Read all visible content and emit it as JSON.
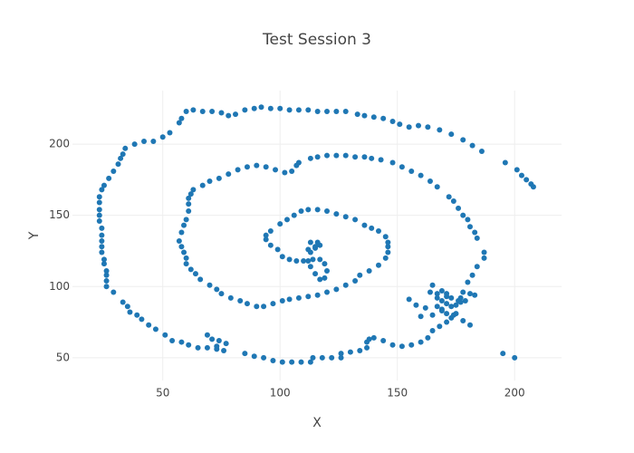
{
  "chart_data": {
    "type": "scatter",
    "title": "Test Session 3",
    "x_label": "X",
    "y_label": "Y",
    "color": "#1f77b4",
    "grid": true,
    "xlim": [
      11.5,
      220
    ],
    "ylim": [
      34,
      237.6
    ],
    "xticks": [
      50,
      100,
      150,
      200
    ],
    "yticks": [
      50,
      100,
      150,
      200
    ],
    "x": [
      208,
      207,
      205,
      203,
      201,
      196,
      186,
      182,
      178,
      173,
      168,
      163,
      159,
      155,
      151,
      148,
      144,
      140,
      136,
      133,
      128,
      124,
      120,
      116,
      112,
      108,
      104,
      100,
      96,
      92,
      89,
      85,
      81,
      78,
      75,
      71,
      67,
      63,
      60,
      58,
      57,
      53,
      50,
      46,
      42,
      38,
      34,
      33,
      32,
      31,
      29,
      27,
      25,
      24,
      23,
      23,
      23,
      23,
      23,
      24,
      24,
      24,
      24,
      24,
      25,
      25,
      26,
      26,
      26,
      26,
      29,
      33,
      35,
      36,
      39,
      41,
      44,
      47,
      51,
      54,
      58,
      61,
      65,
      69,
      73,
      76,
      73,
      71,
      69,
      74,
      77,
      85,
      89,
      93,
      97,
      101,
      105,
      109,
      113,
      114,
      118,
      122,
      126,
      126,
      130,
      134,
      137,
      137,
      138,
      140,
      144,
      148,
      152,
      156,
      160,
      163,
      165,
      168,
      171,
      173,
      175,
      173,
      171,
      169,
      167,
      165,
      164,
      169,
      171,
      173,
      176,
      179,
      177,
      178,
      180,
      182,
      184,
      187,
      187,
      184,
      183,
      181,
      180,
      178,
      176,
      174,
      172,
      167,
      164,
      160,
      156,
      152,
      148,
      143,
      139,
      136,
      132,
      128,
      124,
      120,
      116,
      113,
      108,
      107,
      105,
      102,
      98,
      94,
      90,
      86,
      82,
      78,
      74,
      70,
      67,
      63,
      62,
      61,
      61,
      61,
      60,
      59,
      58,
      57,
      58,
      59,
      60,
      60,
      62,
      64,
      66,
      70,
      73,
      75,
      79,
      83,
      86,
      90,
      93,
      97,
      101,
      104,
      108,
      112,
      116,
      120,
      124,
      128,
      132,
      134,
      138,
      142,
      145,
      146,
      146,
      146,
      145,
      142,
      139,
      136,
      132,
      128,
      124,
      120,
      116,
      112,
      109,
      106,
      103,
      100,
      96,
      94,
      94,
      96,
      99,
      101,
      104,
      107,
      110,
      114,
      117,
      119,
      120,
      119,
      117,
      115,
      113,
      112,
      113,
      115,
      117,
      116,
      113,
      112,
      115,
      155,
      158,
      162,
      167,
      169,
      171,
      160,
      165,
      169,
      175,
      177,
      181,
      183,
      181,
      178,
      174,
      171,
      167,
      195,
      200
    ],
    "y": [
      170,
      172,
      175,
      178,
      182,
      187,
      195,
      199,
      203,
      207,
      210,
      212,
      213,
      212,
      214,
      216,
      218,
      219,
      220,
      221,
      223,
      223,
      223,
      223,
      224,
      224,
      224,
      225,
      225,
      226,
      225,
      224,
      221,
      220,
      222,
      223,
      223,
      224,
      223,
      218,
      215,
      208,
      205,
      202,
      202,
      200,
      197,
      193,
      190,
      186,
      181,
      176,
      171,
      168,
      163,
      159,
      154,
      150,
      146,
      141,
      136,
      132,
      128,
      124,
      119,
      116,
      111,
      108,
      104,
      100,
      96,
      89,
      86,
      82,
      80,
      77,
      73,
      70,
      66,
      62,
      61,
      59,
      57,
      57,
      56,
      55,
      58,
      63,
      66,
      62,
      60,
      53,
      51,
      50,
      48,
      47,
      47,
      47,
      47,
      50,
      50,
      50,
      50,
      53,
      54,
      55,
      57,
      61,
      63,
      64,
      62,
      59,
      58,
      59,
      61,
      64,
      69,
      72,
      75,
      78,
      81,
      86,
      88,
      90,
      92,
      101,
      96,
      97,
      95,
      92,
      90,
      90,
      92,
      96,
      103,
      108,
      114,
      120,
      124,
      134,
      138,
      142,
      147,
      150,
      155,
      160,
      163,
      170,
      174,
      178,
      181,
      184,
      187,
      189,
      190,
      191,
      191,
      192,
      192,
      192,
      191,
      190,
      187,
      185,
      181,
      180,
      182,
      184,
      185,
      184,
      182,
      179,
      176,
      174,
      171,
      168,
      165,
      162,
      158,
      153,
      147,
      143,
      138,
      132,
      128,
      124,
      120,
      116,
      112,
      109,
      105,
      101,
      98,
      95,
      92,
      90,
      88,
      86,
      86,
      88,
      90,
      91,
      92,
      93,
      94,
      96,
      98,
      101,
      104,
      108,
      111,
      115,
      120,
      124,
      128,
      131,
      135,
      139,
      141,
      143,
      147,
      149,
      151,
      153,
      154,
      154,
      153,
      150,
      147,
      144,
      139,
      136,
      133,
      129,
      126,
      121,
      119,
      118,
      118,
      119,
      119,
      116,
      111,
      106,
      105,
      109,
      114,
      118,
      124,
      127,
      129,
      131,
      131,
      126,
      128,
      91,
      87,
      85,
      86,
      84,
      81,
      79,
      80,
      83,
      87,
      89,
      95,
      94,
      73,
      76,
      80,
      93,
      95,
      53,
      50
    ]
  }
}
